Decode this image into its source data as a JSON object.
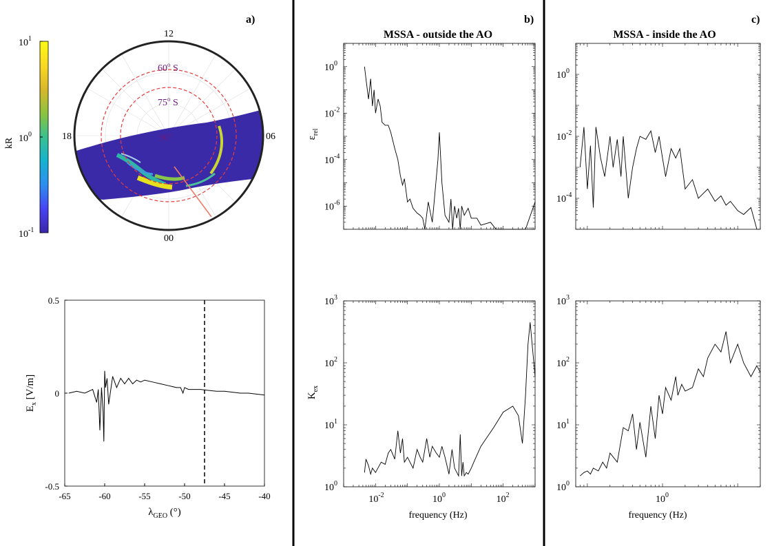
{
  "panels": {
    "a_label": "a)",
    "b_label": "b)",
    "c_label": "c)",
    "b_title": "MSSA - outside the AO",
    "c_title": "MSSA - inside the AO"
  },
  "colorbar": {
    "label": "kR",
    "ticks": [
      {
        "base": "10",
        "exp": "1"
      },
      {
        "base": "10",
        "exp": "0"
      },
      {
        "base": "10",
        "exp": "-1"
      }
    ],
    "colormap": [
      "#3e26a8",
      "#4743f5",
      "#2d8ef0",
      "#15b3d0",
      "#3ac08f",
      "#8cc33f",
      "#d9b72a",
      "#fbd923",
      "#f9fb15"
    ]
  },
  "polar": {
    "hour_labels": {
      "top": "12",
      "left": "18",
      "right": "06",
      "bottom": "00"
    },
    "lat_labels": [
      {
        "text": "60",
        "unit": "S"
      },
      {
        "text": "75",
        "unit": "S"
      },
      {
        "text": "90",
        "unit": ""
      }
    ],
    "swath_color": "#3a2aa8"
  },
  "chart_data": [
    {
      "type": "line",
      "panel": "a-bottom",
      "xlabel": "λ",
      "xlabel_sub": "GEO",
      "xlabel_unit": "(°)",
      "ylabel": "E",
      "ylabel_sub": "x",
      "ylabel_unit": "[V/m]",
      "xlim": [
        -65,
        -40
      ],
      "ylim": [
        -0.5,
        0.5
      ],
      "xticks": [
        "-65",
        "-60",
        "-55",
        "-50",
        "-45",
        "-40"
      ],
      "yticks": [
        "0.5",
        "0",
        "-0.5"
      ],
      "vline_x": -47.5,
      "series": [
        {
          "x": [
            -64.5,
            -63.5,
            -62.5,
            -61.5,
            -61,
            -60.8,
            -60.6,
            -60.4,
            -60.2,
            -60.1,
            -60,
            -59.9,
            -59.7,
            -59.5,
            -59,
            -58.5,
            -58,
            -57.5,
            -57,
            -56.5,
            -56,
            -55.5,
            -55,
            -54,
            -53,
            -52,
            -51,
            -50.5,
            -50.2,
            -50,
            -49.5,
            -48,
            -47,
            -46,
            -45,
            -44,
            -43,
            -42,
            -41,
            -40
          ],
          "y": [
            0.0,
            0.01,
            0.0,
            0.02,
            -0.05,
            0.02,
            -0.2,
            0.03,
            -0.1,
            -0.26,
            0.12,
            0.03,
            0.08,
            -0.06,
            0.09,
            0.03,
            0.08,
            0.05,
            0.08,
            0.05,
            0.07,
            0.06,
            0.07,
            0.06,
            0.05,
            0.04,
            0.03,
            0.03,
            0.0,
            0.03,
            0.02,
            0.02,
            0.015,
            0.01,
            0.01,
            0.005,
            0.0,
            0.0,
            -0.005,
            -0.01
          ]
        }
      ]
    },
    {
      "type": "line",
      "panel": "b-top",
      "ylabel": "ε",
      "ylabel_sub": "rel",
      "yscale": "log",
      "xscale": "log",
      "xlim": [
        0.001,
        1000
      ],
      "ylim": [
        1e-07,
        10
      ],
      "yticks": [
        {
          "base": "10",
          "exp": "0"
        },
        {
          "base": "10",
          "exp": "-2"
        },
        {
          "base": "10",
          "exp": "-4"
        },
        {
          "base": "10",
          "exp": "-6"
        }
      ],
      "series": [
        {
          "x": [
            0.0045,
            0.005,
            0.006,
            0.007,
            0.008,
            0.009,
            0.01,
            0.012,
            0.014,
            0.016,
            0.02,
            0.025,
            0.03,
            0.04,
            0.05,
            0.06,
            0.07,
            0.08,
            0.1,
            0.12,
            0.15,
            0.2,
            0.25,
            0.3,
            0.35,
            0.45,
            0.6,
            0.7,
            0.9,
            1.0,
            1.2,
            1.5,
            2.0,
            2.3,
            2.6,
            3.0,
            3.5,
            4.0,
            4.5,
            5.0,
            6.0,
            8,
            10,
            15,
            20,
            40,
            60,
            100,
            200,
            300,
            500,
            1000
          ],
          "y": [
            1.0,
            0.3,
            0.04,
            0.3,
            0.02,
            0.1,
            0.01,
            0.04,
            0.02,
            0.004,
            0.003,
            0.003,
            0.0015,
            0.0003,
            0.0001,
            2e-05,
            8e-06,
            1.5e-05,
            1.5e-06,
            2e-06,
            8e-07,
            5e-07,
            4e-07,
            3e-07,
            1e-07,
            1.5e-06,
            2e-07,
            2e-06,
            0.0001,
            0.0015,
            1e-05,
            4e-07,
            2e-07,
            2e-06,
            1e-07,
            1e-06,
            3e-07,
            8e-07,
            5e-08,
            1e-06,
            4e-07,
            8e-07,
            3e-07,
            3e-07,
            1.5e-07,
            2e-07,
            8e-08,
            6e-08,
            4e-08,
            1e-07,
            5e-08,
            1.5e-06
          ]
        }
      ]
    },
    {
      "type": "line",
      "panel": "b-bottom",
      "ylabel": "K",
      "ylabel_sub": "ex",
      "xlabel": "frequency (Hz)",
      "yscale": "log",
      "xscale": "log",
      "xlim": [
        0.001,
        1000
      ],
      "ylim": [
        1,
        1000
      ],
      "xticks": [
        {
          "base": "10",
          "exp": "-2"
        },
        {
          "base": "10",
          "exp": "0"
        },
        {
          "base": "10",
          "exp": "2"
        }
      ],
      "yticks": [
        {
          "base": "10",
          "exp": "3"
        },
        {
          "base": "10",
          "exp": "2"
        },
        {
          "base": "10",
          "exp": "1"
        },
        {
          "base": "10",
          "exp": "0"
        }
      ],
      "series": [
        {
          "x": [
            0.0045,
            0.005,
            0.006,
            0.007,
            0.008,
            0.01,
            0.015,
            0.02,
            0.025,
            0.03,
            0.04,
            0.05,
            0.06,
            0.07,
            0.08,
            0.1,
            0.12,
            0.15,
            0.2,
            0.25,
            0.3,
            0.4,
            0.5,
            0.6,
            0.8,
            1.0,
            1.2,
            1.5,
            2.0,
            2.5,
            3.0,
            4.0,
            4.5,
            5.0,
            5.5,
            6,
            7,
            8,
            10,
            12,
            20,
            50,
            100,
            200,
            300,
            400,
            500,
            600,
            700,
            1000
          ],
          "y": [
            1.7,
            2.8,
            2.2,
            1.6,
            2.0,
            1.7,
            2.5,
            2.3,
            3.5,
            4.0,
            2.8,
            8.0,
            3.5,
            6.0,
            2.5,
            3.0,
            2.5,
            2.0,
            4.0,
            3.0,
            2.5,
            6.0,
            3.0,
            4.5,
            3.5,
            3.0,
            4.5,
            3.0,
            1.6,
            4.0,
            2.0,
            1.5,
            7.0,
            1.5,
            2.5,
            1.5,
            1.7,
            1.6,
            2.0,
            2.5,
            4.5,
            9.0,
            16.0,
            20.0,
            14.0,
            5.0,
            30.0,
            200.0,
            450.0,
            60.0
          ]
        }
      ]
    },
    {
      "type": "line",
      "panel": "c-top",
      "yscale": "log",
      "xscale": "log",
      "xlim": [
        0.07,
        20
      ],
      "ylim": [
        1e-05,
        10
      ],
      "yticks": [
        {
          "base": "10",
          "exp": "0"
        },
        {
          "base": "10",
          "exp": "-2"
        },
        {
          "base": "10",
          "exp": "-4"
        }
      ],
      "series": [
        {
          "x": [
            0.08,
            0.09,
            0.1,
            0.11,
            0.12,
            0.13,
            0.15,
            0.17,
            0.2,
            0.22,
            0.25,
            0.28,
            0.3,
            0.35,
            0.4,
            0.45,
            0.5,
            0.6,
            0.7,
            0.8,
            0.9,
            1.0,
            1.1,
            1.3,
            1.5,
            1.7,
            2.0,
            2.5,
            3,
            4,
            5,
            6,
            7,
            8,
            10,
            12,
            15,
            18
          ],
          "y": [
            0.001,
            0.02,
            0.0002,
            0.005,
            5e-05,
            0.02,
            0.002,
            0.0005,
            0.01,
            0.001,
            0.008,
            0.0005,
            0.01,
            0.0001,
            0.001,
            0.004,
            0.01,
            0.008,
            0.015,
            0.003,
            0.01,
            0.002,
            0.0005,
            0.004,
            0.002,
            0.004,
            0.0002,
            0.0004,
            0.0001,
            0.0002,
            8e-05,
            0.00012,
            6e-05,
            8e-05,
            4e-05,
            3e-05,
            5e-05,
            1e-05
          ]
        }
      ]
    },
    {
      "type": "line",
      "panel": "c-bottom",
      "xlabel": "frequency (Hz)",
      "yscale": "log",
      "xscale": "log",
      "xlim": [
        0.07,
        20
      ],
      "ylim": [
        1,
        1000
      ],
      "xticks": [
        {
          "base": "10",
          "exp": "0"
        }
      ],
      "yticks": [
        {
          "base": "10",
          "exp": "3"
        },
        {
          "base": "10",
          "exp": "2"
        },
        {
          "base": "10",
          "exp": "1"
        },
        {
          "base": "10",
          "exp": "0"
        }
      ],
      "series": [
        {
          "x": [
            0.08,
            0.09,
            0.1,
            0.11,
            0.12,
            0.14,
            0.16,
            0.18,
            0.2,
            0.25,
            0.3,
            0.35,
            0.4,
            0.45,
            0.5,
            0.6,
            0.7,
            0.8,
            0.9,
            1.0,
            1.1,
            1.3,
            1.5,
            1.6,
            1.8,
            2.0,
            2.5,
            3.0,
            3.5,
            4.0,
            5.0,
            6.0,
            7,
            8,
            10,
            12,
            15,
            18,
            20
          ],
          "y": [
            1.5,
            1.7,
            1.8,
            1.6,
            2.0,
            1.8,
            2.5,
            2.0,
            3.5,
            2.5,
            9.0,
            8.0,
            15.0,
            4.0,
            11.0,
            3.0,
            20.0,
            6.0,
            30.0,
            15.0,
            40.0,
            25.0,
            60.0,
            30.0,
            45.0,
            35.0,
            40.0,
            80.0,
            60.0,
            120.0,
            200.0,
            150.0,
            320.0,
            100.0,
            200.0,
            100.0,
            60.0,
            90.0,
            70.0
          ]
        }
      ]
    }
  ]
}
